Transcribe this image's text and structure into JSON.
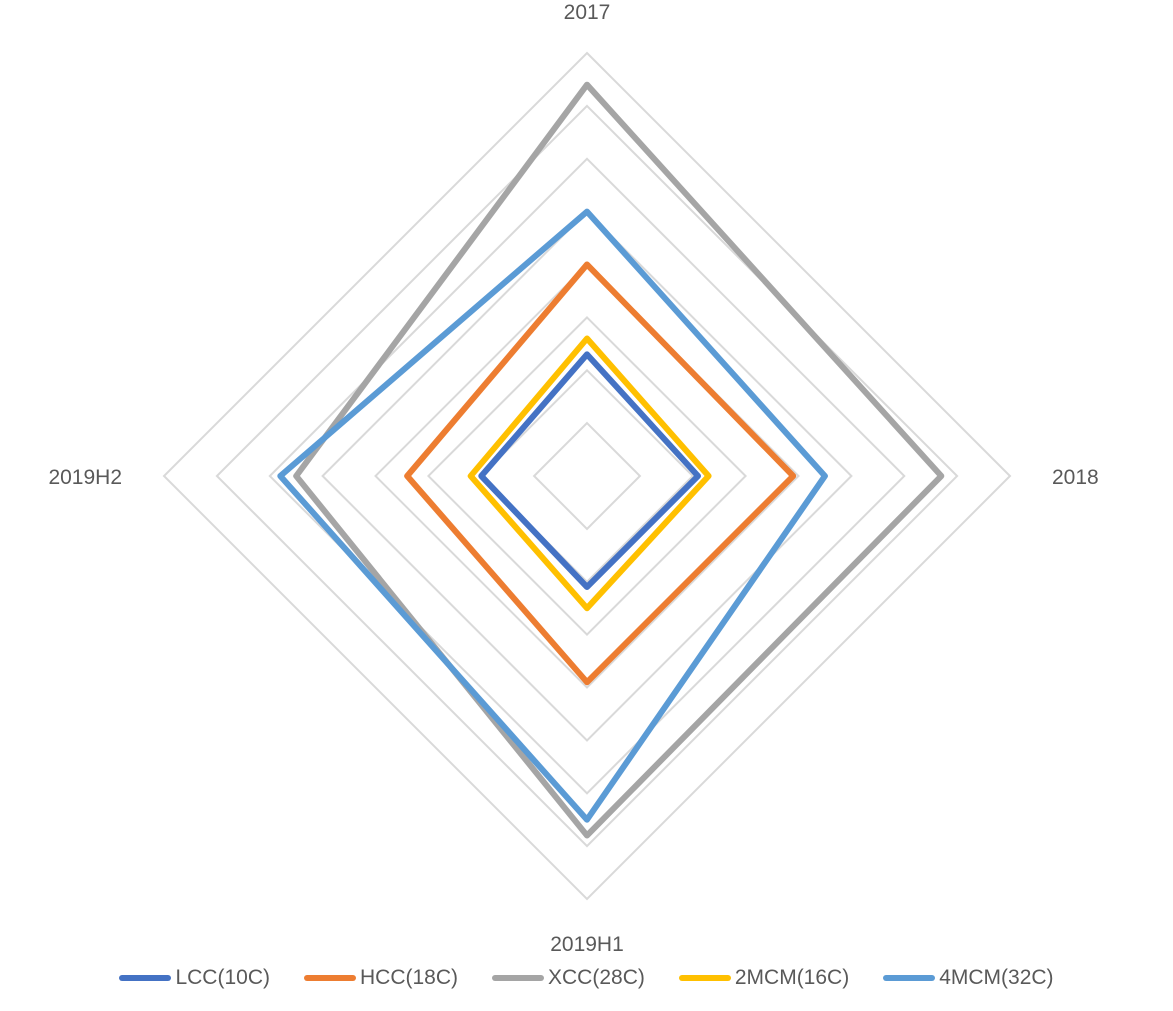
{
  "chart_data": {
    "type": "radar",
    "categories": [
      "2017",
      "2018",
      "2019H1",
      "2019H2"
    ],
    "rmax": 8,
    "rings": 8,
    "grid": true,
    "legend_position": "bottom",
    "series": [
      {
        "name": "LCC(10C)",
        "color": "#4472C4",
        "values": [
          2.3,
          2.1,
          2.1,
          2.0
        ]
      },
      {
        "name": "HCC(18C)",
        "color": "#ED7D31",
        "values": [
          4.0,
          3.9,
          3.9,
          3.4
        ]
      },
      {
        "name": "XCC(28C)",
        "color": "#A5A5A5",
        "values": [
          7.4,
          6.7,
          6.8,
          5.5
        ]
      },
      {
        "name": "2MCM(16C)",
        "color": "#FFC000",
        "values": [
          2.6,
          2.3,
          2.5,
          2.2
        ]
      },
      {
        "name": "4MCM(32C)",
        "color": "#5B9BD5",
        "values": [
          5.0,
          4.5,
          6.5,
          5.8
        ]
      }
    ]
  }
}
